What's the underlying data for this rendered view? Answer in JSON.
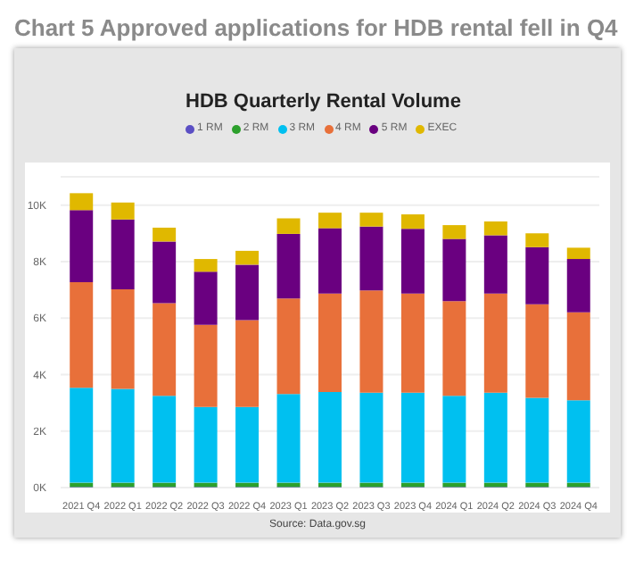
{
  "chart_data": {
    "type": "bar",
    "title": "Chart 5 Approved applications for HDB rental fell in Q4",
    "subtitle": "HDB Quarterly Rental Volume",
    "annotations": [
      "Source: Data.gov.sg"
    ],
    "categories": [
      "2021 Q4",
      "2022 Q1",
      "2022 Q2",
      "2022 Q3",
      "2022 Q4",
      "2023 Q1",
      "2023 Q2",
      "2023 Q3",
      "2023 Q4",
      "2024 Q1",
      "2024 Q2",
      "2024 Q3",
      "2024 Q4"
    ],
    "stacked": true,
    "legend": "top left",
    "grid": "y",
    "ylim": [
      0,
      11000
    ],
    "yticks": [
      {
        "value": 0,
        "label": "0K"
      },
      {
        "value": 2000,
        "label": "2K"
      },
      {
        "value": 4000,
        "label": "4K"
      },
      {
        "value": 6000,
        "label": "6K"
      },
      {
        "value": 8000,
        "label": "8K"
      },
      {
        "value": 10000,
        "label": "10K"
      }
    ],
    "series": [
      {
        "name": "1 RM",
        "color": "#5b4fc4",
        "values": [
          20,
          20,
          20,
          20,
          20,
          20,
          20,
          20,
          20,
          20,
          20,
          20,
          20
        ]
      },
      {
        "name": "2 RM",
        "color": "#2ca02c",
        "values": [
          150,
          150,
          150,
          150,
          150,
          150,
          150,
          150,
          150,
          150,
          150,
          150,
          150
        ]
      },
      {
        "name": "3 RM",
        "color": "#00c0f0",
        "values": [
          3360,
          3320,
          3080,
          2680,
          2680,
          3140,
          3210,
          3190,
          3190,
          3080,
          3190,
          3010,
          2920
        ]
      },
      {
        "name": "4 RM",
        "color": "#e8703a",
        "values": [
          3740,
          3530,
          3280,
          2910,
          3080,
          3380,
          3490,
          3620,
          3510,
          3350,
          3510,
          3310,
          3110
        ]
      },
      {
        "name": "5 RM",
        "color": "#6a0080",
        "values": [
          2550,
          2470,
          2180,
          1880,
          1960,
          2290,
          2310,
          2260,
          2290,
          2200,
          2060,
          2020,
          1890
        ]
      },
      {
        "name": "EXEC",
        "color": "#e0b800",
        "values": [
          600,
          600,
          490,
          450,
          490,
          550,
          550,
          490,
          510,
          490,
          490,
          490,
          400
        ]
      }
    ]
  }
}
